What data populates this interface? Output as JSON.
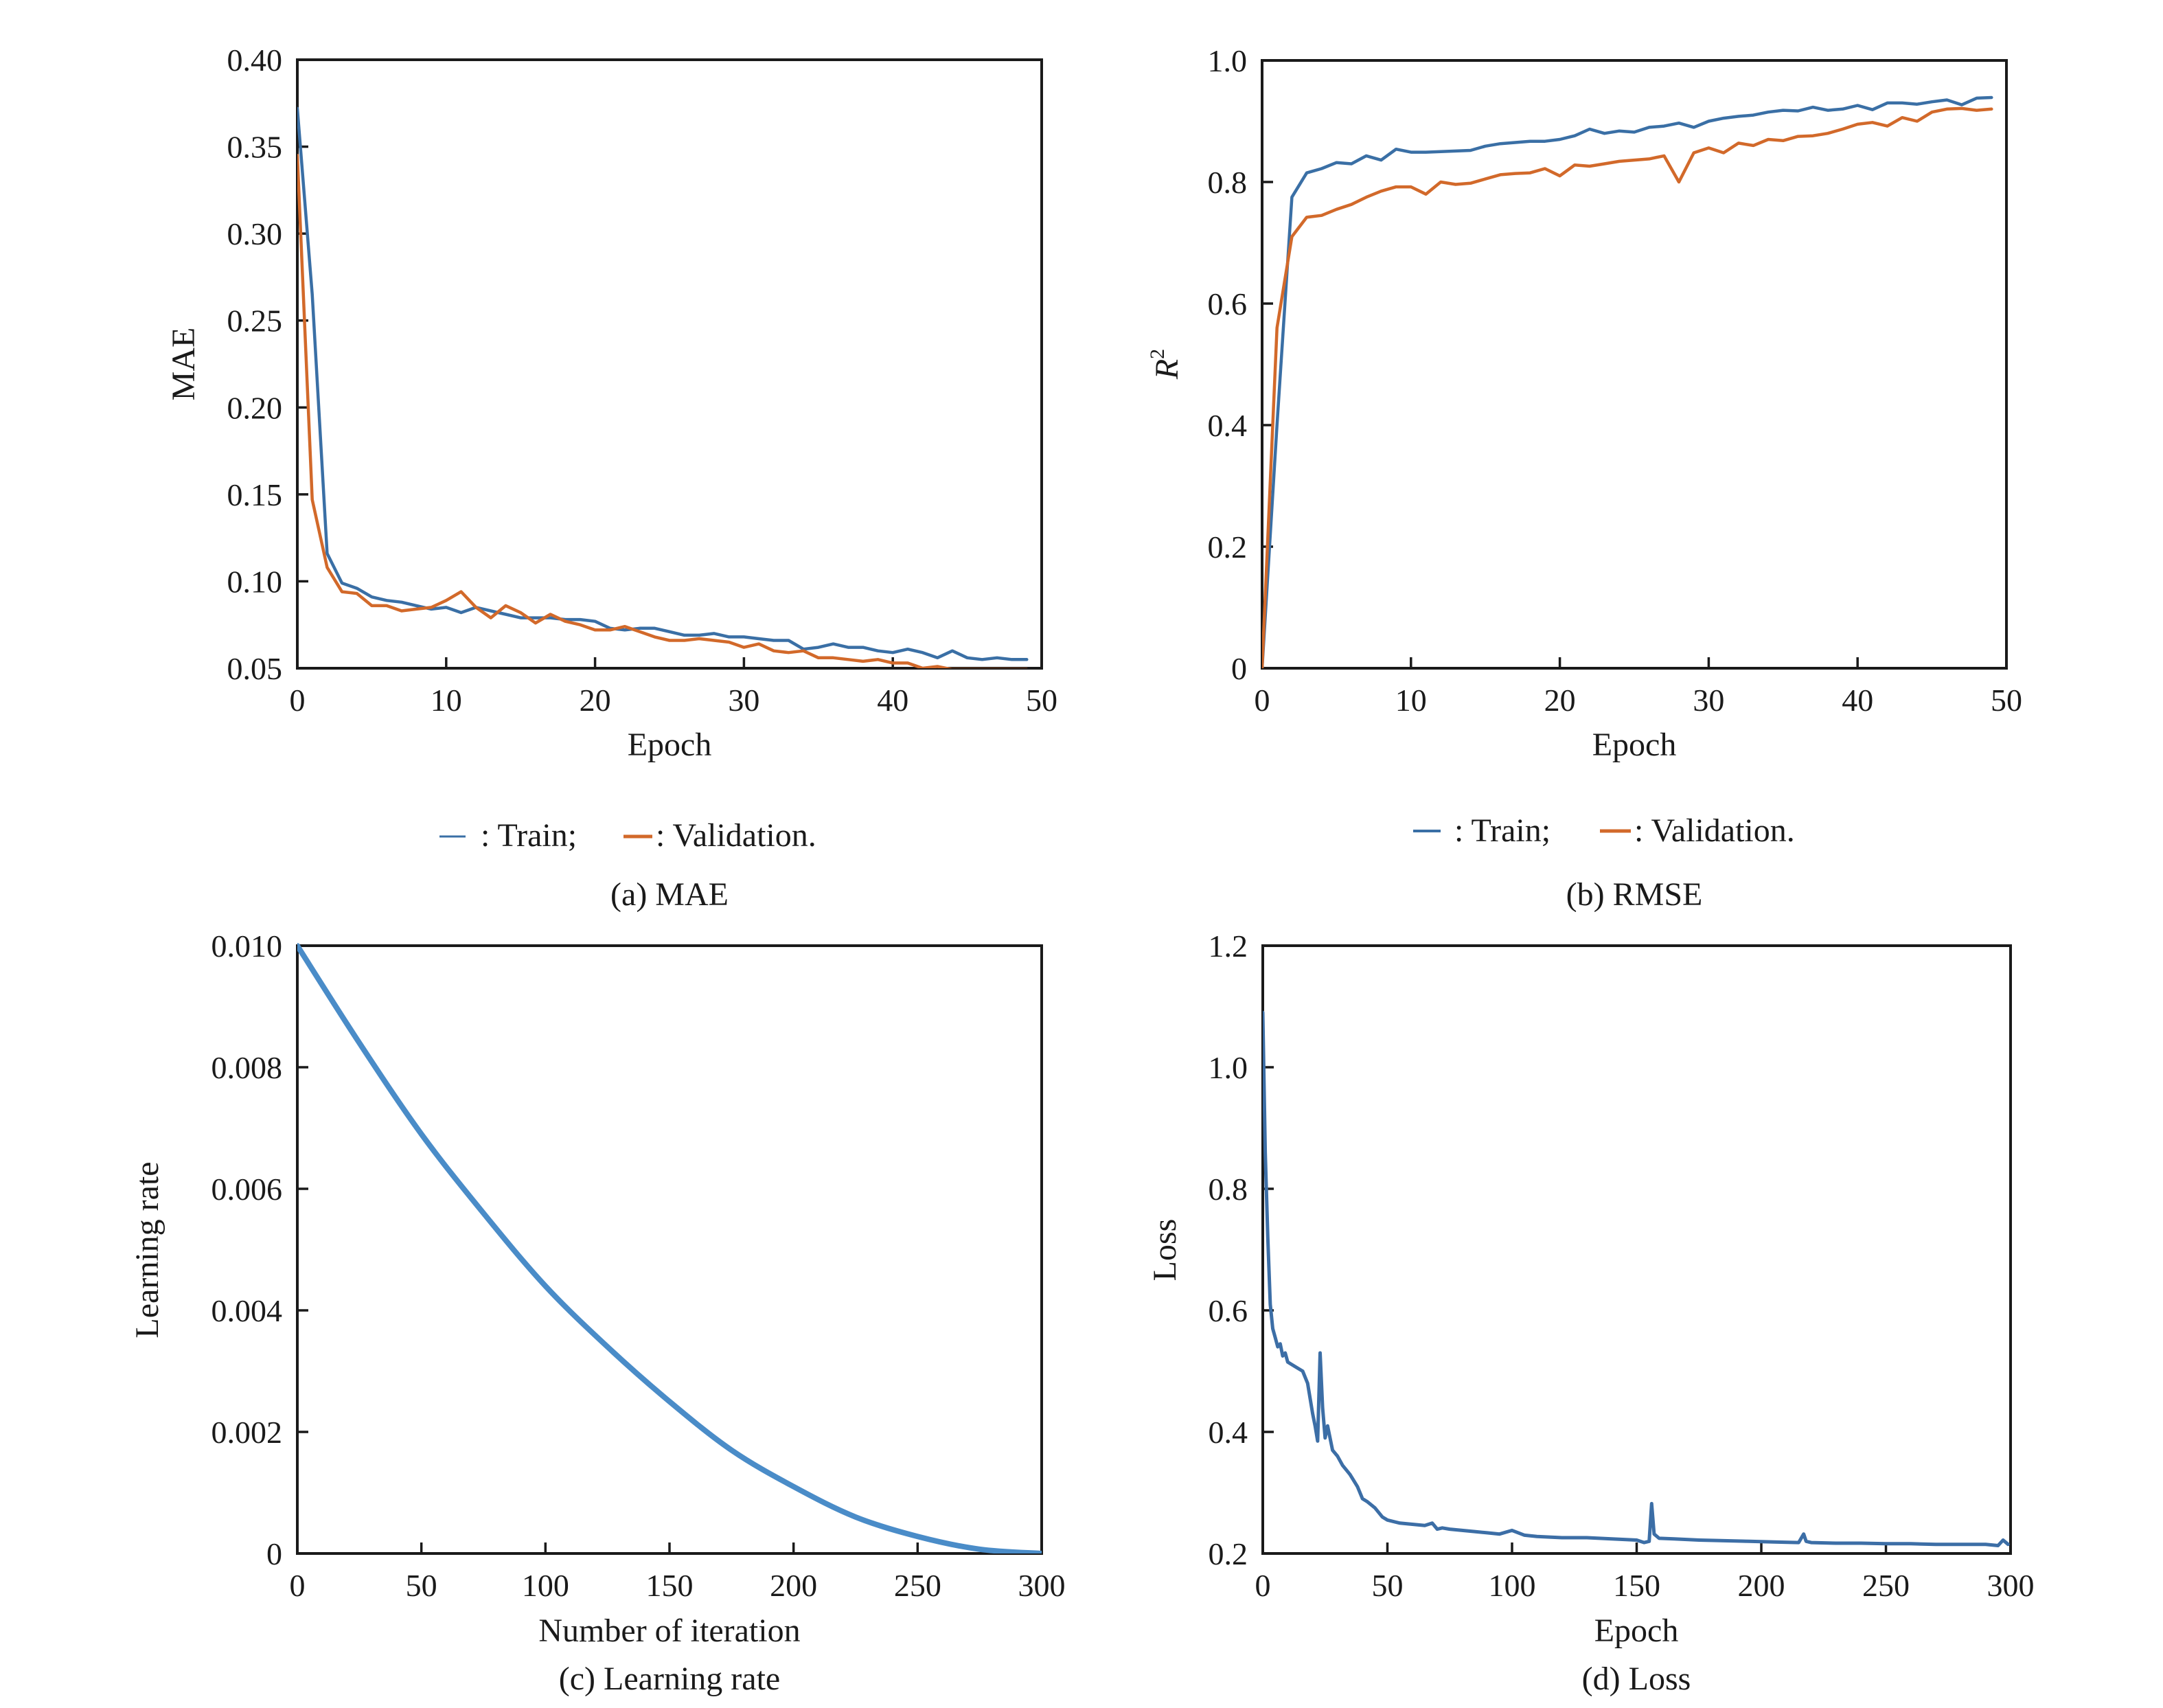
{
  "colors": {
    "train": "#3a6fa5",
    "validation": "#d2692a",
    "learning_rate": "#4a8cc8",
    "loss": "#3c6ea6"
  },
  "chart_data": [
    {
      "id": "a",
      "type": "line",
      "title": "",
      "caption": "(a) MAE",
      "xlabel": "Epoch",
      "ylabel": "MAE",
      "xlim": [
        0,
        50
      ],
      "ylim": [
        0.05,
        0.4
      ],
      "xticks": [
        0,
        10,
        20,
        30,
        40,
        50
      ],
      "xtick_labels": [
        "0",
        "10",
        "20",
        "30",
        "40",
        "50"
      ],
      "yticks": [
        0.05,
        0.1,
        0.15,
        0.2,
        0.25,
        0.3,
        0.35,
        0.4
      ],
      "ytick_labels": [
        "0.05",
        "0.10",
        "0.15",
        "0.20",
        "0.25",
        "0.30",
        "0.35",
        "0.40"
      ],
      "grid": false,
      "legend": {
        "placement": "below",
        "items": [
          {
            "label": ": Train;",
            "series": "Train"
          },
          {
            "label": ": Validation.",
            "series": "Validation"
          }
        ]
      },
      "x": [
        0,
        1,
        2,
        3,
        4,
        5,
        6,
        7,
        8,
        9,
        10,
        11,
        12,
        13,
        14,
        15,
        16,
        17,
        18,
        19,
        20,
        21,
        22,
        23,
        24,
        25,
        26,
        27,
        28,
        29,
        30,
        31,
        32,
        33,
        34,
        35,
        36,
        37,
        38,
        39,
        40,
        41,
        42,
        43,
        44,
        45,
        46,
        47,
        48,
        49
      ],
      "series": [
        {
          "name": "Train",
          "color_key": "train",
          "values": [
            0.372,
            0.265,
            0.116,
            0.099,
            0.096,
            0.091,
            0.089,
            0.088,
            0.086,
            0.084,
            0.085,
            0.082,
            0.085,
            0.083,
            0.081,
            0.079,
            0.079,
            0.079,
            0.078,
            0.078,
            0.077,
            0.073,
            0.072,
            0.073,
            0.073,
            0.071,
            0.069,
            0.069,
            0.07,
            0.068,
            0.068,
            0.067,
            0.066,
            0.066,
            0.061,
            0.062,
            0.064,
            0.062,
            0.062,
            0.06,
            0.059,
            0.061,
            0.059,
            0.056,
            0.06,
            0.056,
            0.055,
            0.056,
            0.055,
            0.055
          ]
        },
        {
          "name": "Validation",
          "color_key": "validation",
          "values": [
            0.345,
            0.147,
            0.108,
            0.094,
            0.093,
            0.086,
            0.086,
            0.083,
            0.084,
            0.085,
            0.089,
            0.094,
            0.085,
            0.079,
            0.086,
            0.082,
            0.076,
            0.081,
            0.077,
            0.075,
            0.072,
            0.072,
            0.074,
            0.071,
            0.068,
            0.066,
            0.066,
            0.067,
            0.066,
            0.065,
            0.062,
            0.064,
            0.06,
            0.059,
            0.06,
            0.056,
            0.056,
            0.055,
            0.054,
            0.055,
            0.053,
            0.053,
            0.05,
            0.051,
            0.049,
            0.048,
            0.047,
            0.046,
            0.046,
            0.045
          ]
        }
      ]
    },
    {
      "id": "b",
      "type": "line",
      "title": "",
      "caption": "(b) RMSE",
      "xlabel": "Epoch",
      "ylabel_main": "R",
      "ylabel_sup": "2",
      "xlim": [
        0,
        50
      ],
      "ylim": [
        0,
        1.0
      ],
      "xticks": [
        0,
        10,
        20,
        30,
        40,
        50
      ],
      "xtick_labels": [
        "0",
        "10",
        "20",
        "30",
        "40",
        "50"
      ],
      "yticks": [
        0,
        0.2,
        0.4,
        0.6,
        0.8,
        1.0
      ],
      "ytick_labels": [
        "0",
        "0.2",
        "0.4",
        "0.6",
        "0.8",
        "1.0"
      ],
      "grid": false,
      "legend": {
        "placement": "below",
        "items": [
          {
            "label": ": Train;",
            "series": "Train"
          },
          {
            "label": ": Validation.",
            "series": "Validation"
          }
        ]
      },
      "x": [
        0,
        1,
        2,
        3,
        4,
        5,
        6,
        7,
        8,
        9,
        10,
        11,
        12,
        13,
        14,
        15,
        16,
        17,
        18,
        19,
        20,
        21,
        22,
        23,
        24,
        25,
        26,
        27,
        28,
        29,
        30,
        31,
        32,
        33,
        34,
        35,
        36,
        37,
        38,
        39,
        40,
        41,
        42,
        43,
        44,
        45,
        46,
        47,
        48,
        49
      ],
      "series": [
        {
          "name": "Train",
          "color_key": "train",
          "values": [
            0.0,
            0.4,
            0.775,
            0.815,
            0.822,
            0.832,
            0.83,
            0.843,
            0.836,
            0.854,
            0.849,
            0.849,
            0.85,
            0.851,
            0.852,
            0.859,
            0.863,
            0.865,
            0.867,
            0.867,
            0.87,
            0.876,
            0.887,
            0.88,
            0.884,
            0.882,
            0.89,
            0.892,
            0.897,
            0.89,
            0.9,
            0.905,
            0.908,
            0.91,
            0.915,
            0.918,
            0.917,
            0.923,
            0.918,
            0.92,
            0.926,
            0.919,
            0.93,
            0.93,
            0.928,
            0.932,
            0.935,
            0.927,
            0.938,
            0.939
          ]
        },
        {
          "name": "Validation",
          "color_key": "validation",
          "values": [
            0.0,
            0.56,
            0.71,
            0.742,
            0.745,
            0.755,
            0.763,
            0.775,
            0.785,
            0.792,
            0.792,
            0.78,
            0.8,
            0.796,
            0.798,
            0.805,
            0.812,
            0.814,
            0.815,
            0.822,
            0.81,
            0.828,
            0.826,
            0.83,
            0.834,
            0.836,
            0.838,
            0.843,
            0.8,
            0.848,
            0.856,
            0.848,
            0.864,
            0.86,
            0.87,
            0.868,
            0.875,
            0.876,
            0.88,
            0.887,
            0.895,
            0.898,
            0.892,
            0.906,
            0.9,
            0.915,
            0.92,
            0.921,
            0.918,
            0.92
          ]
        }
      ]
    },
    {
      "id": "c",
      "type": "line",
      "title": "",
      "caption": "(c) Learning rate",
      "xlabel": "Number of iteration",
      "ylabel": "Learning rate",
      "xlim": [
        0,
        300
      ],
      "ylim": [
        0,
        0.01
      ],
      "xticks": [
        0,
        50,
        100,
        150,
        200,
        250,
        300
      ],
      "xtick_labels": [
        "0",
        "50",
        "100",
        "150",
        "200",
        "250",
        "300"
      ],
      "yticks": [
        0,
        0.002,
        0.004,
        0.006,
        0.008,
        0.01
      ],
      "ytick_labels": [
        "0",
        "0.002",
        "0.004",
        "0.006",
        "0.008",
        "0.010"
      ],
      "grid": false,
      "series": [
        {
          "name": "Learning rate",
          "color_key": "learning_rate",
          "x": [
            0,
            25,
            50,
            75,
            100,
            125,
            150,
            175,
            200,
            225,
            250,
            275,
            300
          ],
          "values": [
            0.01,
            0.0084,
            0.0069,
            0.0056,
            0.0044,
            0.0034,
            0.0025,
            0.0017,
            0.0011,
            0.0006,
            0.00028,
            7e-05,
            0.0
          ]
        }
      ]
    },
    {
      "id": "d",
      "type": "line",
      "title": "",
      "caption": "(d) Loss",
      "xlabel": "Epoch",
      "ylabel": "Loss",
      "xlim": [
        0,
        300
      ],
      "ylim": [
        0.2,
        1.2
      ],
      "xticks": [
        0,
        50,
        100,
        150,
        200,
        250,
        300
      ],
      "xtick_labels": [
        "0",
        "50",
        "100",
        "150",
        "200",
        "250",
        "300"
      ],
      "yticks": [
        0.2,
        0.4,
        0.6,
        0.8,
        1.0,
        1.2
      ],
      "ytick_labels": [
        "0.2",
        "0.4",
        "0.6",
        "0.8",
        "1.0",
        "1.2"
      ],
      "grid": false,
      "series": [
        {
          "name": "Loss",
          "color_key": "loss",
          "x": [
            0,
            1,
            2,
            3,
            4,
            5,
            6,
            7,
            8,
            9,
            10,
            12,
            14,
            16,
            18,
            20,
            21,
            22,
            23,
            24,
            25,
            26,
            28,
            30,
            32,
            35,
            38,
            40,
            42,
            45,
            48,
            50,
            55,
            60,
            65,
            68,
            70,
            72,
            75,
            80,
            85,
            90,
            95,
            100,
            105,
            110,
            120,
            130,
            140,
            150,
            153,
            155,
            156,
            157,
            159,
            165,
            175,
            185,
            195,
            205,
            215,
            217,
            218,
            220,
            230,
            240,
            250,
            260,
            270,
            280,
            290,
            295,
            297,
            299
          ],
          "values": [
            1.09,
            0.86,
            0.72,
            0.61,
            0.57,
            0.555,
            0.54,
            0.545,
            0.525,
            0.53,
            0.515,
            0.51,
            0.505,
            0.5,
            0.48,
            0.43,
            0.41,
            0.385,
            0.53,
            0.44,
            0.39,
            0.41,
            0.37,
            0.36,
            0.345,
            0.33,
            0.31,
            0.29,
            0.285,
            0.275,
            0.26,
            0.255,
            0.25,
            0.248,
            0.246,
            0.25,
            0.24,
            0.242,
            0.24,
            0.238,
            0.236,
            0.234,
            0.232,
            0.238,
            0.23,
            0.228,
            0.226,
            0.226,
            0.224,
            0.222,
            0.218,
            0.22,
            0.282,
            0.232,
            0.225,
            0.224,
            0.222,
            0.221,
            0.22,
            0.219,
            0.218,
            0.232,
            0.22,
            0.218,
            0.217,
            0.217,
            0.216,
            0.216,
            0.215,
            0.215,
            0.215,
            0.213,
            0.222,
            0.215
          ]
        }
      ]
    }
  ]
}
